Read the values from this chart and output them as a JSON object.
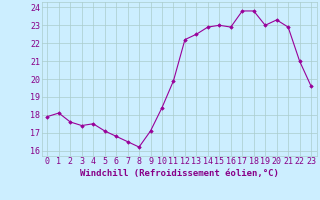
{
  "x": [
    0,
    1,
    2,
    3,
    4,
    5,
    6,
    7,
    8,
    9,
    10,
    11,
    12,
    13,
    14,
    15,
    16,
    17,
    18,
    19,
    20,
    21,
    22,
    23
  ],
  "y": [
    17.9,
    18.1,
    17.6,
    17.4,
    17.5,
    17.1,
    16.8,
    16.5,
    16.2,
    17.1,
    18.4,
    19.9,
    22.2,
    22.5,
    22.9,
    23.0,
    22.9,
    23.8,
    23.8,
    23.0,
    23.3,
    22.9,
    21.0,
    19.6
  ],
  "line_color": "#990099",
  "marker": "D",
  "marker_size": 1.8,
  "bg_color": "#cceeff",
  "grid_color": "#aacccc",
  "xlabel": "Windchill (Refroidissement éolien,°C)",
  "xlabel_fontsize": 6.5,
  "ylabel_ticks": [
    16,
    17,
    18,
    19,
    20,
    21,
    22,
    23,
    24
  ],
  "xlim": [
    -0.5,
    23.5
  ],
  "ylim": [
    15.7,
    24.3
  ],
  "tick_fontsize": 6.0,
  "title_color": "#880088"
}
